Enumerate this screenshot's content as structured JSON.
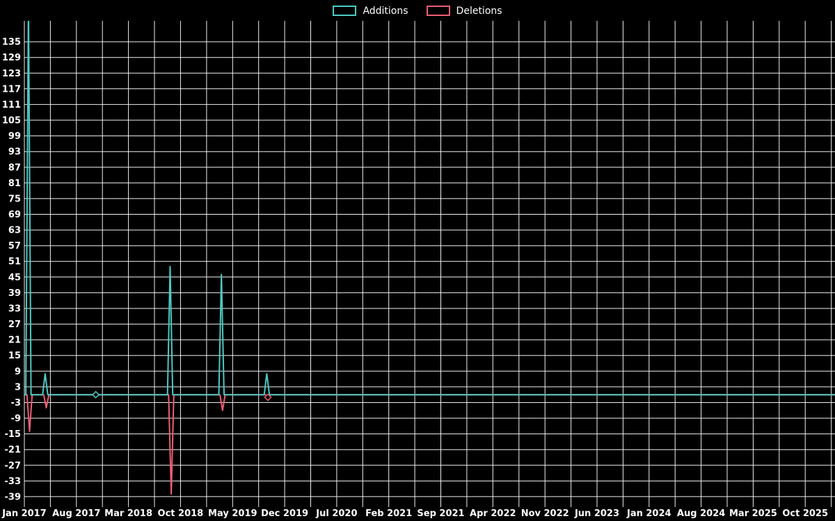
{
  "legend": [
    {
      "label": "Additions",
      "color": "#4ec9c3"
    },
    {
      "label": "Deletions",
      "color": "#ec5f76"
    }
  ],
  "chart_data": {
    "type": "line",
    "title": "",
    "background_color": "#000000",
    "grid_color": "#f0f0f0",
    "text_color": "#ffffff",
    "x_unit": "months since Jan 2017",
    "x_axis": {
      "labels": [
        "Jan 2017",
        "Aug 2017",
        "Mar 2018",
        "Oct 2018",
        "May 2019",
        "Dec 2019",
        "Jul 2020",
        "Feb 2021",
        "Sep 2021",
        "Apr 2022",
        "Nov 2022",
        "Jun 2023",
        "Jan 2024",
        "Aug 2024",
        "Mar 2025",
        "Oct 2025"
      ],
      "label_interval_months": 7,
      "grid_interval_months": 3.5,
      "total_months": 109
    },
    "y_axis": {
      "ticks": [
        135,
        129,
        123,
        117,
        111,
        105,
        99,
        93,
        87,
        81,
        75,
        69,
        63,
        57,
        51,
        45,
        39,
        33,
        27,
        21,
        15,
        9,
        3,
        -3,
        -9,
        -15,
        -21,
        -27,
        -33,
        -39
      ],
      "tick_step": 6,
      "min": -43,
      "max": 143
    },
    "series": [
      {
        "name": "Additions",
        "color": "#4ec9c3",
        "points": [
          [
            0,
            0
          ],
          [
            0.2,
            0
          ],
          [
            0.55,
            150
          ],
          [
            0.9,
            0
          ],
          [
            2.45,
            0
          ],
          [
            2.8,
            8
          ],
          [
            3.15,
            0
          ],
          [
            19.25,
            0
          ],
          [
            19.6,
            49
          ],
          [
            19.95,
            0
          ],
          [
            26.15,
            0
          ],
          [
            26.5,
            46
          ],
          [
            26.85,
            0
          ],
          [
            32.25,
            0
          ],
          [
            32.6,
            8
          ],
          [
            32.95,
            0
          ],
          [
            109,
            0
          ]
        ]
      },
      {
        "name": "Deletions",
        "color": "#ec5f76",
        "points": [
          [
            0,
            0
          ],
          [
            0.35,
            0
          ],
          [
            0.7,
            -14
          ],
          [
            1.05,
            0
          ],
          [
            2.6,
            0
          ],
          [
            2.95,
            -5
          ],
          [
            3.3,
            0
          ],
          [
            19.4,
            0
          ],
          [
            19.75,
            -38
          ],
          [
            20.1,
            0
          ],
          [
            26.3,
            0
          ],
          [
            26.65,
            -6
          ],
          [
            27.0,
            0
          ],
          [
            32.4,
            0
          ],
          [
            32.75,
            -1
          ],
          [
            33.1,
            0
          ],
          [
            109,
            0
          ]
        ]
      }
    ],
    "markers": [
      {
        "series_index": 0,
        "x": 9.6,
        "y": 0
      },
      {
        "series_index": 1,
        "x": 32.75,
        "y": -1
      }
    ],
    "legend_position": "top-center",
    "grid": true
  }
}
